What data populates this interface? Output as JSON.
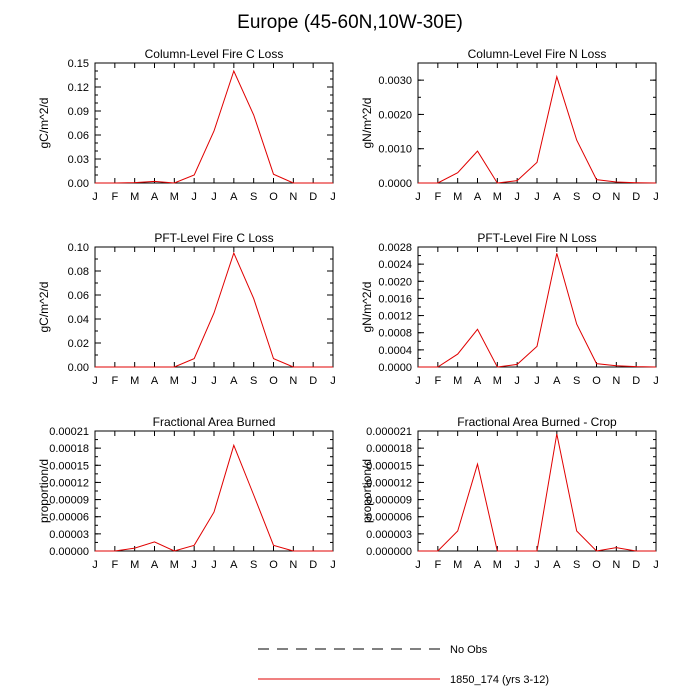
{
  "page": {
    "title": "Europe (45-60N,10W-30E)"
  },
  "months": [
    "J",
    "F",
    "M",
    "A",
    "M",
    "J",
    "J",
    "A",
    "S",
    "O",
    "N",
    "D",
    "J"
  ],
  "legend": {
    "obs_label": "No Obs",
    "model_label": "1850_174 (yrs 3-12)",
    "obs_color": "#000000",
    "model_color": "#e00000"
  },
  "chart_data": [
    {
      "type": "line",
      "title": "Column-Level Fire C Loss",
      "ylabel": "gC/m^2/d",
      "ylim": [
        0,
        0.15
      ],
      "yticks": [
        "0.00",
        "0.03",
        "0.06",
        "0.09",
        "0.12",
        "0.15"
      ],
      "yminor": 0.01,
      "x": [
        1,
        2,
        3,
        4,
        5,
        6,
        7,
        8,
        9,
        10,
        11,
        12,
        13
      ],
      "series": [
        {
          "name": "1850_174 (yrs 3-12)",
          "values": [
            0,
            0,
            0.0005,
            0.002,
            0,
            0.01,
            0.065,
            0.14,
            0.085,
            0.011,
            0,
            0,
            0
          ]
        }
      ]
    },
    {
      "type": "line",
      "title": "Column-Level Fire N Loss",
      "ylabel": "gN/m^2/d",
      "ylim": [
        0,
        0.0035
      ],
      "yticks": [
        "0.0000",
        "0.0010",
        "0.0020",
        "0.0030"
      ],
      "yminor": 0.0005,
      "x": [
        1,
        2,
        3,
        4,
        5,
        6,
        7,
        8,
        9,
        10,
        11,
        12,
        13
      ],
      "series": [
        {
          "name": "1850_174 (yrs 3-12)",
          "values": [
            0,
            0,
            0.0003,
            0.00093,
            0,
            7e-05,
            0.0006,
            0.0031,
            0.00125,
            0.0001,
            3e-05,
            1e-05,
            0
          ]
        }
      ]
    },
    {
      "type": "line",
      "title": "PFT-Level Fire C Loss",
      "ylabel": "gC/m^2/d",
      "ylim": [
        0,
        0.1
      ],
      "yticks": [
        "0.00",
        "0.02",
        "0.04",
        "0.06",
        "0.08",
        "0.10"
      ],
      "yminor": 0.01,
      "x": [
        1,
        2,
        3,
        4,
        5,
        6,
        7,
        8,
        9,
        10,
        11,
        12,
        13
      ],
      "series": [
        {
          "name": "1850_174 (yrs 3-12)",
          "values": [
            0,
            0,
            0,
            0,
            0,
            0.007,
            0.045,
            0.095,
            0.057,
            0.007,
            0,
            0,
            0
          ]
        }
      ]
    },
    {
      "type": "line",
      "title": "PFT-Level Fire N Loss",
      "ylabel": "gN/m^2/d",
      "ylim": [
        0,
        0.0028
      ],
      "yticks": [
        "0.0000",
        "0.0004",
        "0.0008",
        "0.0012",
        "0.0016",
        "0.0020",
        "0.0024",
        "0.0028"
      ],
      "yminor": 0.0002,
      "x": [
        1,
        2,
        3,
        4,
        5,
        6,
        7,
        8,
        9,
        10,
        11,
        12,
        13
      ],
      "series": [
        {
          "name": "1850_174 (yrs 3-12)",
          "values": [
            0,
            0,
            0.0003,
            0.00088,
            0,
            6e-05,
            0.00048,
            0.00265,
            0.001,
            8e-05,
            3e-05,
            1e-05,
            0
          ]
        }
      ]
    },
    {
      "type": "line",
      "title": "Fractional Area Burned",
      "ylabel": "proportion/d",
      "ylim": [
        0,
        0.00021
      ],
      "yticks": [
        "0.00000",
        "0.00003",
        "0.00006",
        "0.00009",
        "0.00012",
        "0.00015",
        "0.00018",
        "0.00021"
      ],
      "yminor": 1.5e-05,
      "x": [
        1,
        2,
        3,
        4,
        5,
        6,
        7,
        8,
        9,
        10,
        11,
        12,
        13
      ],
      "series": [
        {
          "name": "1850_174 (yrs 3-12)",
          "values": [
            0,
            0,
            5e-06,
            1.6e-05,
            0,
            1e-05,
            6.8e-05,
            0.000185,
            9.8e-05,
            1e-05,
            0,
            0,
            0
          ]
        }
      ]
    },
    {
      "type": "line",
      "title": "Fractional Area Burned - Crop",
      "ylabel": "proportion/d",
      "ylim": [
        0,
        2.1e-05
      ],
      "yticks": [
        "0.000000",
        "0.000003",
        "0.000006",
        "0.000009",
        "0.000012",
        "0.000015",
        "0.000018",
        "0.000021"
      ],
      "yminor": 1.5e-06,
      "x": [
        1,
        2,
        3,
        4,
        5,
        6,
        7,
        8,
        9,
        10,
        11,
        12,
        13
      ],
      "series": [
        {
          "name": "1850_174 (yrs 3-12)",
          "values": [
            0,
            0,
            3.5e-06,
            1.52e-05,
            0,
            0,
            0,
            2.05e-05,
            3.5e-06,
            0,
            6e-07,
            0,
            0
          ]
        }
      ]
    }
  ]
}
